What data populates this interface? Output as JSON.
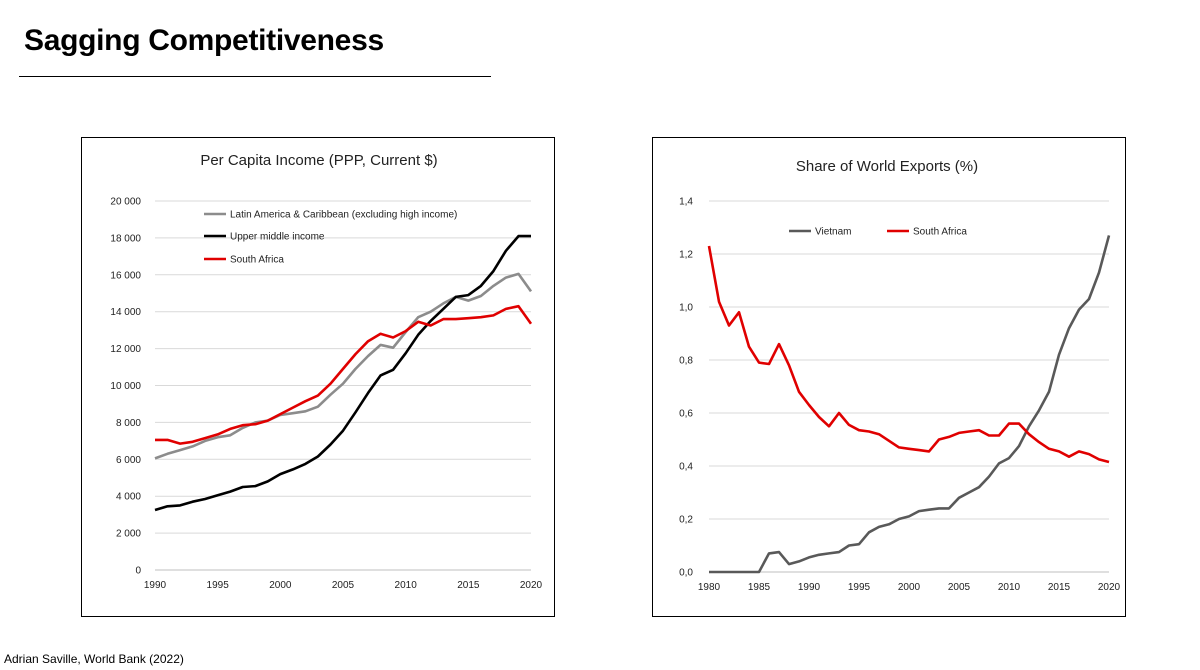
{
  "page": {
    "title": "Sagging Competitiveness",
    "source": "Adrian Saville, World Bank (2022)"
  },
  "chart_data": [
    {
      "type": "line",
      "title": "Per Capita Income (PPP, Current $)",
      "xlabel": "",
      "ylabel": "",
      "xlim": [
        1990,
        2020
      ],
      "ylim": [
        0,
        20000
      ],
      "x_ticks": [
        1990,
        1995,
        2000,
        2005,
        2010,
        2015,
        2020
      ],
      "y_ticks": [
        0,
        2000,
        4000,
        6000,
        8000,
        10000,
        12000,
        14000,
        16000,
        18000,
        20000
      ],
      "y_tick_labels": [
        "0",
        "2 000",
        "4 000",
        "6 000",
        "8 000",
        "10 000",
        "12 000",
        "14 000",
        "16 000",
        "18 000",
        "20 000"
      ],
      "x_tick_labels": [
        "1990",
        "1995",
        "2000",
        "2005",
        "2010",
        "2015",
        "2020"
      ],
      "grid": true,
      "legend_position": "top-left",
      "x": [
        1990,
        1991,
        1992,
        1993,
        1994,
        1995,
        1996,
        1997,
        1998,
        1999,
        2000,
        2001,
        2002,
        2003,
        2004,
        2005,
        2006,
        2007,
        2008,
        2009,
        2010,
        2011,
        2012,
        2013,
        2014,
        2015,
        2016,
        2017,
        2018,
        2019,
        2020
      ],
      "series": [
        {
          "name": "Latin America & Caribbean (excluding high income)",
          "color": "#8c8c8c",
          "values": [
            6050,
            6300,
            6500,
            6700,
            7000,
            7200,
            7300,
            7700,
            8000,
            8100,
            8400,
            8500,
            8600,
            8850,
            9500,
            10100,
            10900,
            11600,
            12200,
            12050,
            12900,
            13700,
            14000,
            14450,
            14800,
            14600,
            14850,
            15400,
            15850,
            16050,
            15100
          ]
        },
        {
          "name": "Upper middle income",
          "color": "#000000",
          "values": [
            3250,
            3450,
            3500,
            3700,
            3850,
            4050,
            4250,
            4500,
            4550,
            4800,
            5200,
            5450,
            5750,
            6150,
            6800,
            7550,
            8550,
            9600,
            10550,
            10850,
            11750,
            12750,
            13500,
            14150,
            14800,
            14900,
            15400,
            16200,
            17300,
            18100,
            18100
          ]
        },
        {
          "name": "South Africa",
          "color": "#e00000",
          "values": [
            7050,
            7050,
            6850,
            6950,
            7150,
            7350,
            7650,
            7850,
            7900,
            8100,
            8450,
            8800,
            9150,
            9450,
            10100,
            10900,
            11700,
            12400,
            12800,
            12600,
            12950,
            13450,
            13250,
            13600,
            13600,
            13650,
            13700,
            13800,
            14150,
            14300,
            13350
          ]
        }
      ]
    },
    {
      "type": "line",
      "title": "Share of World Exports (%)",
      "xlabel": "",
      "ylabel": "",
      "xlim": [
        1980,
        2020
      ],
      "ylim": [
        0,
        1.4
      ],
      "x_ticks": [
        1980,
        1985,
        1990,
        1995,
        2000,
        2005,
        2010,
        2015,
        2020
      ],
      "y_ticks": [
        0,
        0.2,
        0.4,
        0.6,
        0.8,
        1.0,
        1.2,
        1.4
      ],
      "y_tick_labels": [
        "0,0",
        "0,2",
        "0,4",
        "0,6",
        "0,8",
        "1,0",
        "1,2",
        "1,4"
      ],
      "x_tick_labels": [
        "1980",
        "1985",
        "1990",
        "1995",
        "2000",
        "2005",
        "2010",
        "2015",
        "2020"
      ],
      "grid": true,
      "legend_position": "top",
      "x": [
        1980,
        1981,
        1982,
        1983,
        1984,
        1985,
        1986,
        1987,
        1988,
        1989,
        1990,
        1991,
        1992,
        1993,
        1994,
        1995,
        1996,
        1997,
        1998,
        1999,
        2000,
        2001,
        2002,
        2003,
        2004,
        2005,
        2006,
        2007,
        2008,
        2009,
        2010,
        2011,
        2012,
        2013,
        2014,
        2015,
        2016,
        2017,
        2018,
        2019,
        2020
      ],
      "series": [
        {
          "name": "Vietnam",
          "color": "#595959",
          "values": [
            0,
            0,
            0,
            0,
            0,
            0,
            0.07,
            0.075,
            0.03,
            0.04,
            0.055,
            0.065,
            0.07,
            0.075,
            0.1,
            0.105,
            0.15,
            0.17,
            0.18,
            0.2,
            0.21,
            0.23,
            0.235,
            0.24,
            0.24,
            0.28,
            0.3,
            0.32,
            0.36,
            0.41,
            0.43,
            0.475,
            0.55,
            0.61,
            0.68,
            0.82,
            0.92,
            0.99,
            1.03,
            1.13,
            1.27
          ]
        },
        {
          "name": "South Africa",
          "color": "#e00000",
          "values": [
            1.23,
            1.02,
            0.93,
            0.98,
            0.85,
            0.79,
            0.785,
            0.86,
            0.78,
            0.68,
            0.63,
            0.585,
            0.55,
            0.6,
            0.555,
            0.535,
            0.53,
            0.52,
            0.495,
            0.47,
            0.465,
            0.46,
            0.455,
            0.5,
            0.51,
            0.525,
            0.53,
            0.535,
            0.515,
            0.515,
            0.56,
            0.56,
            0.52,
            0.49,
            0.465,
            0.455,
            0.435,
            0.455,
            0.445,
            0.425,
            0.415
          ]
        }
      ]
    }
  ]
}
